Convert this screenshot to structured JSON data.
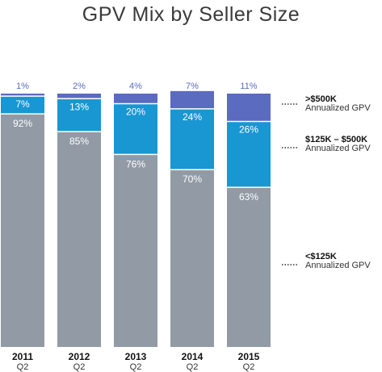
{
  "title": "GPV Mix by Seller Size",
  "colors": {
    "small": "#929aa5",
    "mid": "#1897d2",
    "large": "#5b6bc0"
  },
  "legend": [
    {
      "key": "large",
      "head": ">$500K",
      "sub": "Annualized GPV"
    },
    {
      "key": "mid",
      "head": "$125K – $500K",
      "sub": "Annualized GPV"
    },
    {
      "key": "small",
      "head": "<$125K",
      "sub": "Annualized GPV"
    }
  ],
  "chart_data": {
    "type": "bar",
    "stacked": true,
    "categories": [
      "2011",
      "2012",
      "2013",
      "2014",
      "2015"
    ],
    "subcategories": [
      "Q2",
      "Q2",
      "Q2",
      "Q2",
      "Q2"
    ],
    "series": [
      {
        "name": "<$125K Annualized GPV",
        "values": [
          92,
          85,
          76,
          70,
          63
        ],
        "labels": [
          "92%",
          "85%",
          "76%",
          "70%",
          "63%"
        ]
      },
      {
        "name": "$125K – $500K Annualized GPV",
        "values": [
          7,
          13,
          20,
          24,
          26
        ],
        "labels": [
          "7%",
          "13%",
          "20%",
          "24%",
          "26%"
        ]
      },
      {
        "name": ">$500K Annualized GPV",
        "values": [
          1,
          2,
          4,
          7,
          11
        ],
        "labels": [
          "1%",
          "2%",
          "4%",
          "7%",
          "11%"
        ]
      }
    ],
    "ylim": [
      0,
      100
    ],
    "title": "GPV Mix by Seller Size",
    "xlabel": "",
    "ylabel": ""
  }
}
